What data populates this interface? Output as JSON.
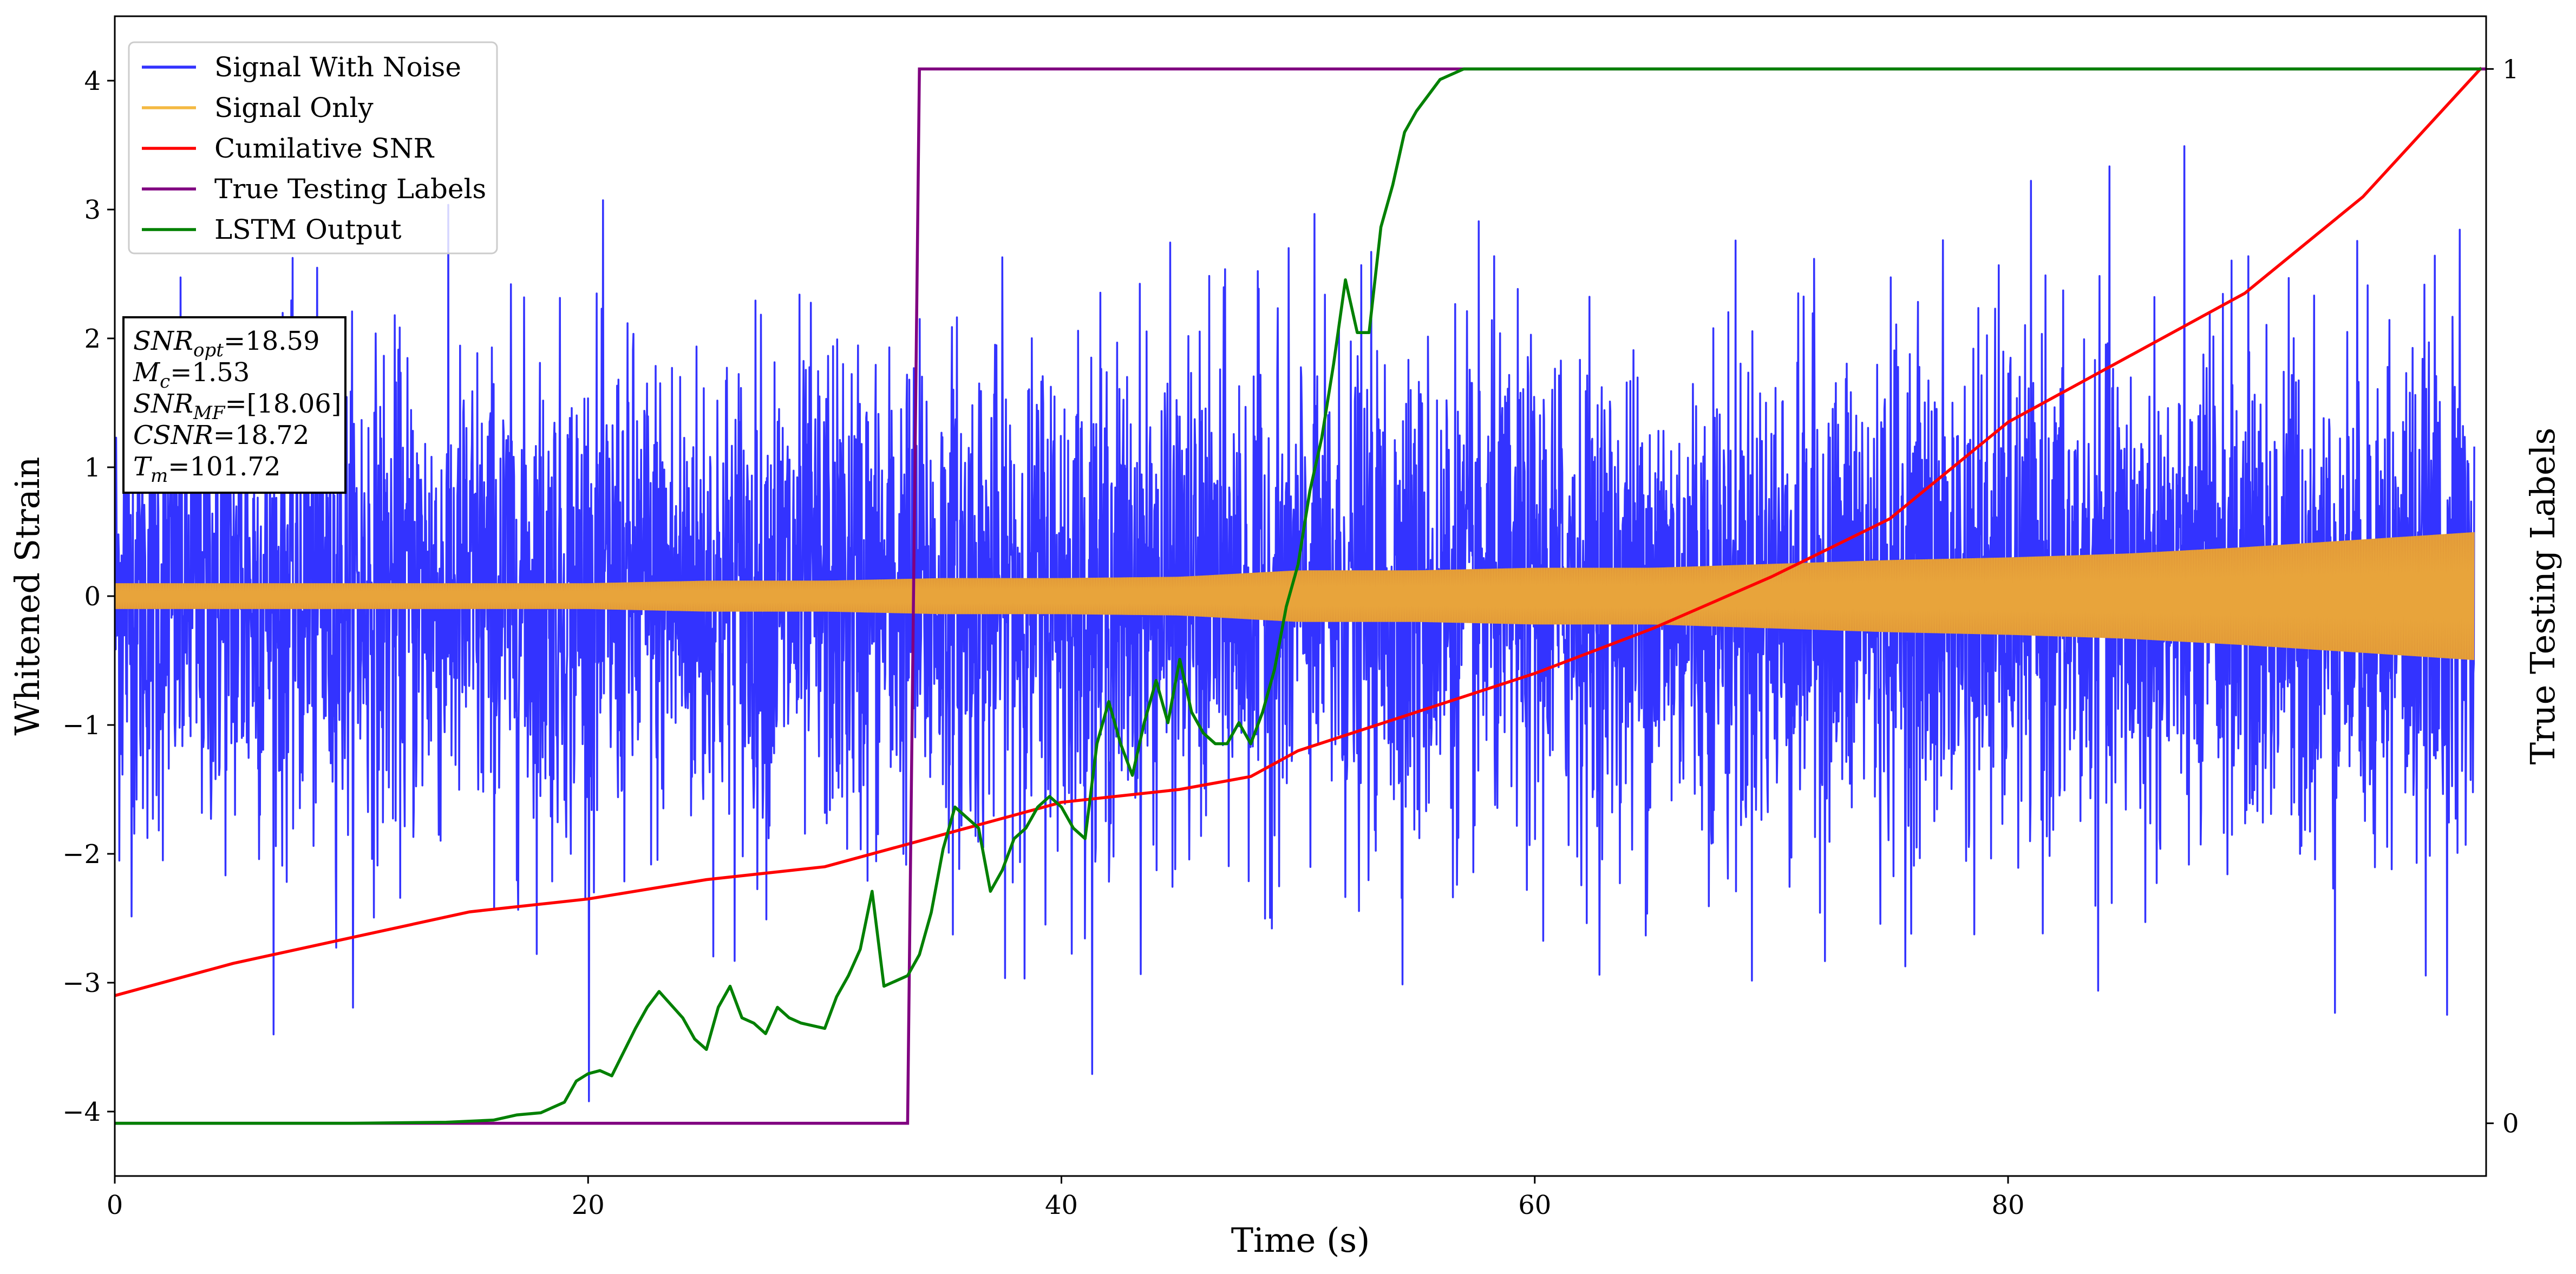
{
  "chart_data": {
    "type": "line",
    "title": "",
    "xlabel": "Time (s)",
    "ylabel": "Whitened Strain",
    "y2label": "True Testing Labels",
    "xlim": [
      0,
      100.2
    ],
    "ylim": [
      -4.5,
      4.5
    ],
    "y2lim": [
      -0.05,
      1.05
    ],
    "x_ticks": [
      0,
      20,
      40,
      60,
      80
    ],
    "x_tick_labels": [
      "0",
      "20",
      "40",
      "60",
      "80"
    ],
    "y_ticks": [
      -4,
      -3,
      -2,
      -1,
      0,
      1,
      2,
      3,
      4
    ],
    "y_tick_labels": [
      "−4",
      "−3",
      "−2",
      "−1",
      "0",
      "1",
      "2",
      "3",
      "4"
    ],
    "y2_ticks": [
      0,
      1
    ],
    "y2_tick_labels": [
      "0",
      "1"
    ],
    "grid": false,
    "legend_position": "top-left",
    "legend": [
      {
        "label": "Signal With Noise",
        "color": "#3333ff"
      },
      {
        "label": "Signal Only",
        "color": "#f4b942"
      },
      {
        "label": "Cumilative SNR",
        "color": "#ff0000"
      },
      {
        "label": "True Testing Labels",
        "color": "#800080"
      },
      {
        "label": "LSTM Output",
        "color": "#008000"
      }
    ],
    "annotation": {
      "lines": [
        {
          "name": "SNR",
          "sub": "opt",
          "value": "=18.59"
        },
        {
          "name": "M",
          "sub": "c",
          "value": "=1.53"
        },
        {
          "name": "SNR",
          "sub": "MF",
          "value": "=[18.06]"
        },
        {
          "name": "CSNR",
          "sub": "",
          "value": "=18.72"
        },
        {
          "name": "T",
          "sub": "m",
          "value": "=101.72"
        }
      ]
    },
    "series": [
      {
        "name": "Signal With Noise",
        "axis": "left",
        "color": "#3333ff",
        "kind": "noise",
        "noise_sigma": 1.0,
        "typical_extremes": [
          -3.7,
          4.0
        ]
      },
      {
        "name": "Signal Only",
        "axis": "left",
        "color": "#f4b942",
        "kind": "envelope",
        "x": [
          0,
          10,
          20,
          25,
          30,
          35,
          40,
          45,
          50,
          55,
          60,
          65,
          70,
          75,
          80,
          85,
          90,
          95,
          100
        ],
        "amplitude": [
          0.1,
          0.1,
          0.1,
          0.12,
          0.12,
          0.14,
          0.14,
          0.15,
          0.2,
          0.2,
          0.22,
          0.22,
          0.25,
          0.28,
          0.3,
          0.33,
          0.38,
          0.44,
          0.5
        ]
      },
      {
        "name": "Cumilative SNR",
        "axis": "left",
        "color": "#ff0000",
        "x": [
          0,
          5,
          10,
          15,
          20,
          25,
          30,
          33,
          35,
          38,
          40,
          45,
          48,
          50,
          55,
          60,
          65,
          70,
          75,
          80,
          85,
          90,
          95,
          100
        ],
        "y": [
          -3.1,
          -2.85,
          -2.65,
          -2.45,
          -2.35,
          -2.2,
          -2.1,
          -1.95,
          -1.85,
          -1.7,
          -1.6,
          -1.5,
          -1.4,
          -1.2,
          -0.9,
          -0.6,
          -0.25,
          0.15,
          0.6,
          1.35,
          1.85,
          2.35,
          3.1,
          4.1
        ]
      },
      {
        "name": "True Testing Labels",
        "axis": "right",
        "color": "#800080",
        "x": [
          0,
          33.5,
          34.0,
          100.2
        ],
        "y": [
          0,
          0,
          1,
          1
        ]
      },
      {
        "name": "LSTM Output",
        "axis": "right",
        "color": "#008000",
        "x": [
          0,
          10,
          14,
          16,
          17,
          18,
          19,
          19.5,
          20,
          20.5,
          21,
          22,
          22.5,
          23,
          24,
          24.5,
          25,
          25.5,
          26,
          26.5,
          27,
          27.5,
          28,
          28.5,
          29,
          30,
          30.5,
          31,
          31.5,
          32,
          32.5,
          33,
          33.5,
          34,
          34.5,
          35,
          35.5,
          36,
          36.5,
          37,
          37.5,
          38,
          38.5,
          39,
          39.5,
          40,
          40.5,
          41,
          41.5,
          42,
          42.5,
          43,
          43.5,
          44,
          44.5,
          45,
          45.5,
          46,
          46.5,
          47,
          47.5,
          48,
          48.5,
          49,
          49.5,
          50,
          50.5,
          51,
          51.5,
          52,
          52.5,
          53,
          53.5,
          54,
          54.5,
          55,
          56,
          57,
          58,
          59,
          60,
          62,
          64,
          66,
          68,
          70,
          80,
          90,
          100
        ],
        "y": [
          0,
          0,
          0.001,
          0.003,
          0.008,
          0.01,
          0.02,
          0.04,
          0.047,
          0.05,
          0.045,
          0.09,
          0.11,
          0.125,
          0.1,
          0.08,
          0.07,
          0.11,
          0.13,
          0.1,
          0.095,
          0.085,
          0.11,
          0.1,
          0.095,
          0.09,
          0.12,
          0.14,
          0.165,
          0.22,
          0.13,
          0.135,
          0.14,
          0.16,
          0.2,
          0.26,
          0.3,
          0.29,
          0.28,
          0.22,
          0.24,
          0.27,
          0.28,
          0.3,
          0.31,
          0.3,
          0.28,
          0.27,
          0.36,
          0.4,
          0.36,
          0.33,
          0.38,
          0.42,
          0.38,
          0.44,
          0.39,
          0.37,
          0.36,
          0.36,
          0.38,
          0.36,
          0.39,
          0.43,
          0.49,
          0.53,
          0.6,
          0.65,
          0.72,
          0.8,
          0.75,
          0.75,
          0.85,
          0.89,
          0.94,
          0.96,
          0.99,
          1.0,
          1.0,
          1.0,
          1.0,
          1.0,
          1.0,
          1.0,
          1.0,
          1.0,
          1.0,
          1.0,
          1.0
        ]
      }
    ]
  }
}
